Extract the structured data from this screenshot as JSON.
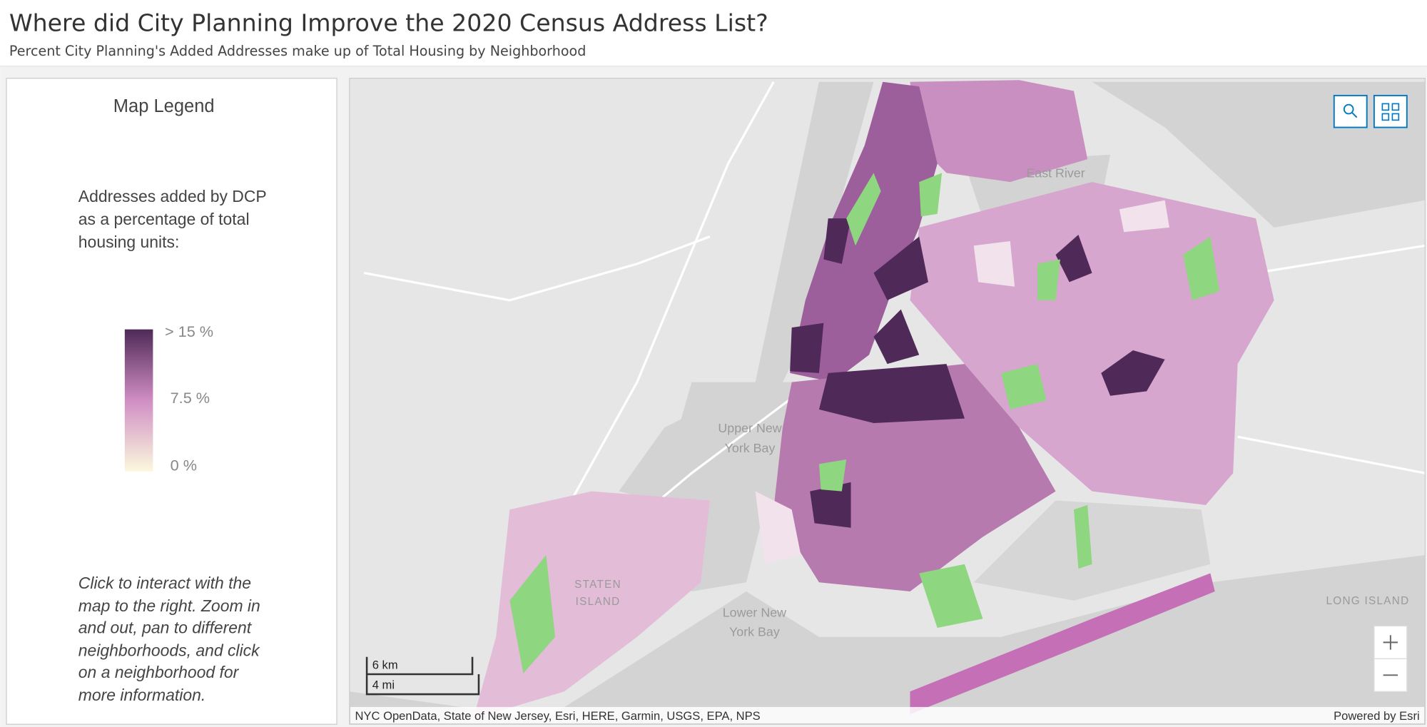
{
  "header": {
    "title": "Where did City Planning Improve the 2020 Census Address List?",
    "subtitle": "Percent City Planning's Added Addresses make up of Total Housing by Neighborhood"
  },
  "legend": {
    "title": "Map Legend",
    "description_lines": [
      "Addresses added by DCP",
      "as a percentage of total",
      "housing units:"
    ],
    "ramp_labels": [
      "> 15 %",
      "7.5 %",
      "0 %"
    ],
    "instructions_lines": [
      "Click to interact with the",
      "map to the right. Zoom in",
      "and out, pan to different",
      "neighborhoods, and click",
      "on a neighborhood for",
      "more information."
    ]
  },
  "map": {
    "labels": [
      {
        "lines": [
          "East River"
        ]
      },
      {
        "lines": [
          "Upper New",
          "York Bay"
        ]
      },
      {
        "lines": [
          "STATEN",
          "ISLAND"
        ]
      },
      {
        "lines": [
          "Lower New",
          "York Bay"
        ]
      },
      {
        "lines": [
          "LONG ISLAND"
        ]
      }
    ],
    "scale": {
      "metric": "6 km",
      "imperial": "4 mi"
    },
    "attribution": "NYC OpenData, State of New Jersey, Esri, HERE, Garmin, USGS, EPA, NPS",
    "powered_by": "Powered by Esri"
  }
}
